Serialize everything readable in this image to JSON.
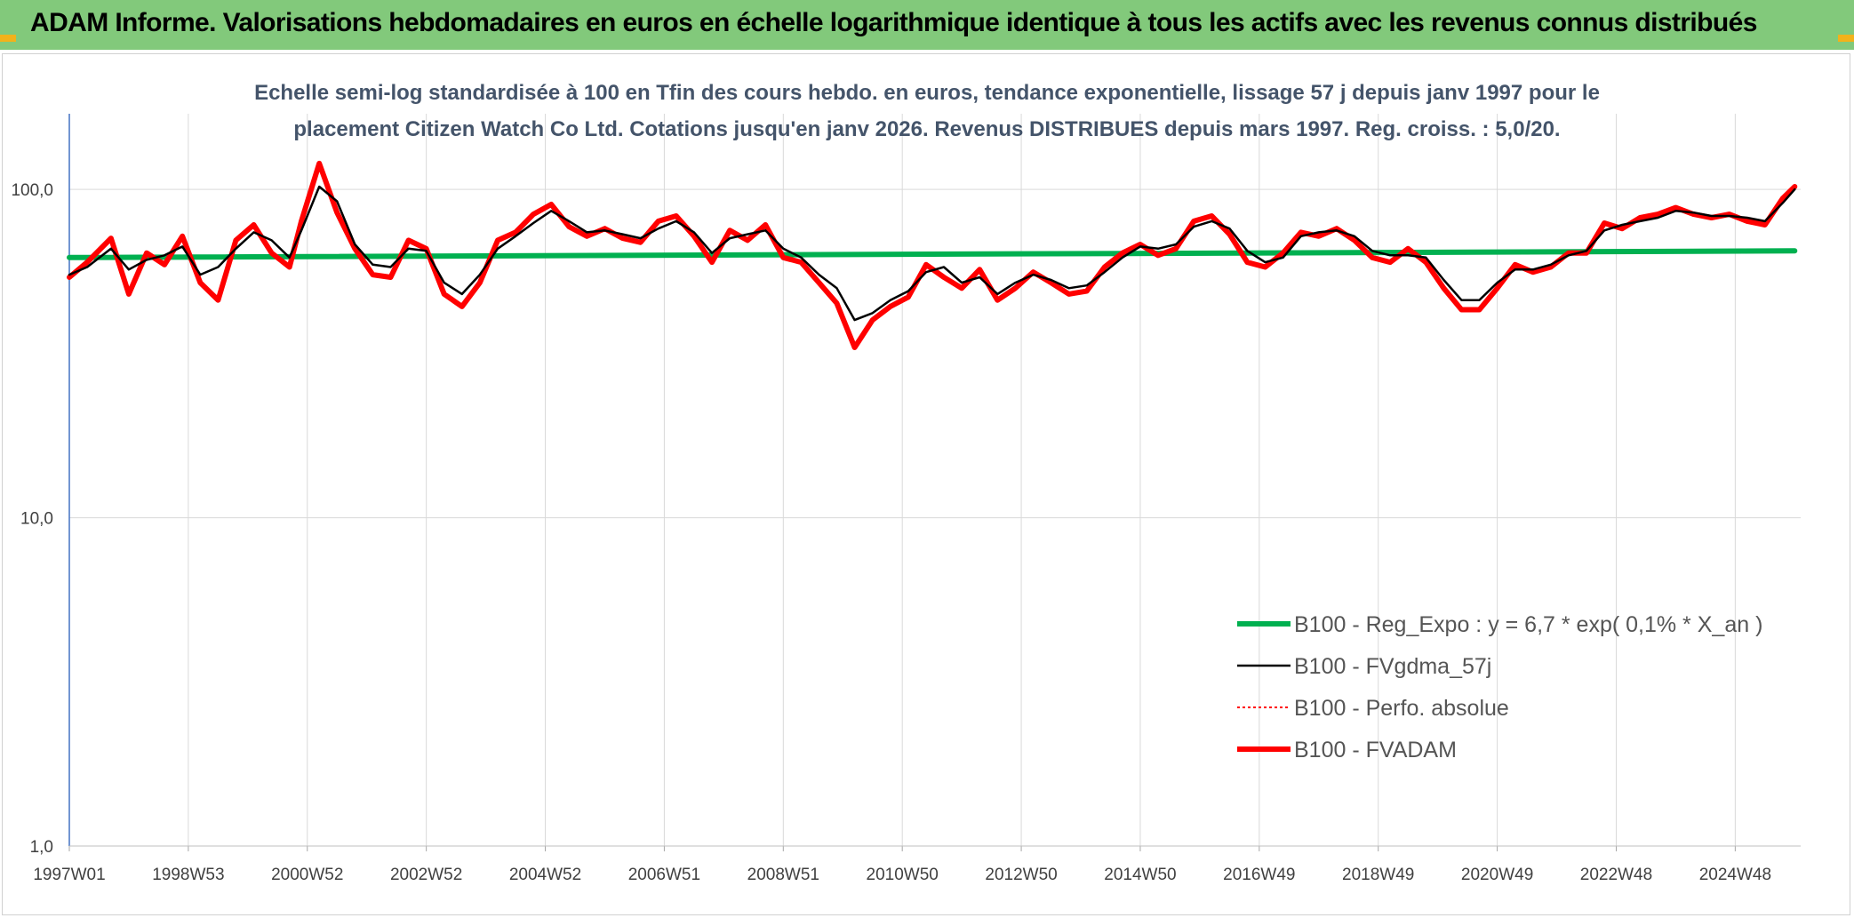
{
  "header": {
    "title": "ADAM Informe. Valorisations hebdomadaires en euros en échelle logarithmique identique à tous les actifs avec les revenus connus distribués",
    "background_color": "#82c97b",
    "accent_color": "#f2b21b"
  },
  "chart_data": {
    "type": "line",
    "title": "",
    "subtitle_lines": [
      "Echelle semi-log standardisée à 100 en Tfin des cours hebdo. en euros, tendance exponentielle, lissage 57 j depuis janv 1997 pour le",
      "placement Citizen Watch Co Ltd. Cotations jusqu'en janv 2026. Revenus DISTRIBUES depuis mars 1997. Reg. croiss. : 5,0/20."
    ],
    "xlabel": "",
    "ylabel": "",
    "y_scale": "log",
    "ylim": [
      1,
      170
    ],
    "y_ticks": [
      "100,0",
      "10,0",
      "1,0"
    ],
    "y_tick_values": [
      100,
      10,
      1
    ],
    "x_range": [
      1997.0,
      2026.1
    ],
    "x_ticks": [
      "1997W01",
      "1998W53",
      "2000W52",
      "2002W52",
      "2004W52",
      "2006W51",
      "2008W51",
      "2010W50",
      "2012W50",
      "2014W50",
      "2016W49",
      "2018W49",
      "2020W49",
      "2022W48",
      "2024W48"
    ],
    "x_tick_years": [
      1997.0,
      1999.0,
      2001.0,
      2003.0,
      2005.0,
      2007.0,
      2009.0,
      2011.0,
      2013.0,
      2015.0,
      2017.0,
      2019.0,
      2021.0,
      2023.0,
      2025.0
    ],
    "grid": true,
    "legend_position": "bottom-right",
    "series": [
      {
        "name": "B100 - Reg_Expo : y = 6,7 * exp( 0,1% *  X_an )",
        "color": "#00b050",
        "style": "solid-thick",
        "x": [
          1997.0,
          2026.0
        ],
        "y": [
          62.0,
          65.0
        ]
      },
      {
        "name": "B100 - FVgdma_57j",
        "color": "#000000",
        "style": "solid-thin",
        "x": [
          1997.0,
          1997.3,
          1997.7,
          1998.0,
          1998.3,
          1998.6,
          1998.9,
          1999.2,
          1999.5,
          1999.8,
          2000.1,
          2000.4,
          2000.7,
          2000.9,
          2001.2,
          2001.5,
          2001.8,
          2002.1,
          2002.4,
          2002.7,
          2003.0,
          2003.3,
          2003.6,
          2003.9,
          2004.2,
          2004.5,
          2004.8,
          2005.1,
          2005.4,
          2005.7,
          2006.0,
          2006.3,
          2006.6,
          2006.9,
          2007.2,
          2007.5,
          2007.8,
          2008.1,
          2008.4,
          2008.7,
          2009.0,
          2009.3,
          2009.6,
          2009.9,
          2010.2,
          2010.5,
          2010.8,
          2011.1,
          2011.4,
          2011.7,
          2012.0,
          2012.3,
          2012.6,
          2012.9,
          2013.2,
          2013.5,
          2013.8,
          2014.1,
          2014.4,
          2014.7,
          2015.0,
          2015.3,
          2015.6,
          2015.9,
          2016.2,
          2016.5,
          2016.8,
          2017.1,
          2017.4,
          2017.7,
          2018.0,
          2018.3,
          2018.6,
          2018.9,
          2019.2,
          2019.5,
          2019.8,
          2020.1,
          2020.4,
          2020.7,
          2021.0,
          2021.3,
          2021.6,
          2021.9,
          2022.2,
          2022.5,
          2022.8,
          2023.1,
          2023.4,
          2023.7,
          2024.0,
          2024.3,
          2024.6,
          2024.9,
          2025.2,
          2025.5,
          2025.8,
          2026.0
        ],
        "y": [
          55,
          58,
          66,
          57,
          61,
          63,
          67,
          55,
          58,
          66,
          74,
          70,
          62,
          75,
          102,
          92,
          68,
          59,
          58,
          66,
          65,
          52,
          48,
          55,
          66,
          72,
          79,
          86,
          80,
          74,
          75,
          73,
          71,
          76,
          80,
          74,
          64,
          71,
          73,
          75,
          66,
          62,
          55,
          50,
          40,
          42,
          46,
          49,
          56,
          58,
          52,
          54,
          48,
          52,
          55,
          53,
          50,
          51,
          56,
          62,
          67,
          66,
          68,
          77,
          80,
          76,
          65,
          60,
          62,
          72,
          74,
          75,
          72,
          65,
          63,
          63,
          62,
          53,
          46,
          46,
          52,
          57,
          57,
          59,
          63,
          65,
          75,
          78,
          80,
          82,
          86,
          85,
          83,
          83,
          82,
          80,
          91,
          100
        ]
      },
      {
        "name": "B100 - Perfo. absolue",
        "color": "#ff0000",
        "style": "dotted",
        "x": [],
        "y": []
      },
      {
        "name": "B100 - FVADAM",
        "color": "#ff0000",
        "style": "solid-thick",
        "x": [
          1997.0,
          1997.3,
          1997.7,
          1998.0,
          1998.3,
          1998.6,
          1998.9,
          1999.2,
          1999.5,
          1999.8,
          2000.1,
          2000.4,
          2000.7,
          2000.9,
          2001.2,
          2001.5,
          2001.8,
          2002.1,
          2002.4,
          2002.7,
          2003.0,
          2003.3,
          2003.6,
          2003.9,
          2004.2,
          2004.5,
          2004.8,
          2005.1,
          2005.4,
          2005.7,
          2006.0,
          2006.3,
          2006.6,
          2006.9,
          2007.2,
          2007.5,
          2007.8,
          2008.1,
          2008.4,
          2008.7,
          2009.0,
          2009.3,
          2009.6,
          2009.9,
          2010.2,
          2010.5,
          2010.8,
          2011.1,
          2011.4,
          2011.7,
          2012.0,
          2012.3,
          2012.6,
          2012.9,
          2013.2,
          2013.5,
          2013.8,
          2014.1,
          2014.4,
          2014.7,
          2015.0,
          2015.3,
          2015.6,
          2015.9,
          2016.2,
          2016.5,
          2016.8,
          2017.1,
          2017.4,
          2017.7,
          2018.0,
          2018.3,
          2018.6,
          2018.9,
          2019.2,
          2019.5,
          2019.8,
          2020.1,
          2020.4,
          2020.7,
          2021.0,
          2021.3,
          2021.6,
          2021.9,
          2022.2,
          2022.5,
          2022.8,
          2023.1,
          2023.4,
          2023.7,
          2024.0,
          2024.3,
          2024.6,
          2024.9,
          2025.2,
          2025.5,
          2025.8,
          2026.0
        ],
        "y": [
          54,
          60,
          71,
          48,
          64,
          59,
          72,
          52,
          46,
          70,
          78,
          64,
          58,
          80,
          120,
          85,
          66,
          55,
          54,
          70,
          66,
          48,
          44,
          52,
          70,
          74,
          84,
          90,
          77,
          72,
          76,
          71,
          69,
          80,
          83,
          72,
          60,
          75,
          70,
          78,
          62,
          60,
          52,
          45,
          33,
          40,
          44,
          47,
          59,
          54,
          50,
          57,
          46,
          50,
          56,
          52,
          48,
          49,
          58,
          64,
          68,
          63,
          66,
          80,
          83,
          73,
          60,
          58,
          64,
          74,
          72,
          76,
          70,
          62,
          60,
          66,
          60,
          50,
          43,
          43,
          50,
          59,
          56,
          58,
          64,
          64,
          79,
          76,
          82,
          84,
          88,
          84,
          82,
          84,
          80,
          78,
          94,
          102
        ]
      }
    ]
  }
}
